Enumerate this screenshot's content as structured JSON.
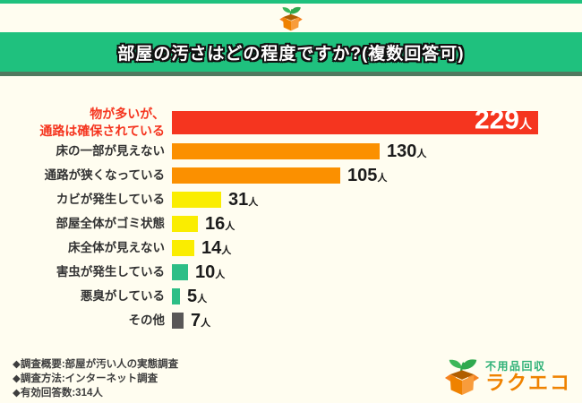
{
  "header": {
    "title": "部屋の汚さはどの程度ですか?(複数回答可)"
  },
  "chart_data": {
    "type": "bar",
    "orientation": "horizontal",
    "title": "部屋の汚さはどの程度ですか?(複数回答可)",
    "unit": "人",
    "categories": [
      "物が多いが、\n通路は確保されている",
      "床の一部が見えない",
      "通路が狭くなっている",
      "カビが発生している",
      "部屋全体がゴミ状態",
      "床全体が見えない",
      "害虫が発生している",
      "悪臭がしている",
      "その他"
    ],
    "values": [
      229,
      130,
      105,
      31,
      16,
      14,
      10,
      5,
      7
    ],
    "bar_colors": [
      "#F5351F",
      "#FB9000",
      "#FB9000",
      "#FAED00",
      "#FAED00",
      "#FAED00",
      "#2DBE86",
      "#2DBE86",
      "#595757"
    ],
    "highlight_index": 0,
    "value_label_position": [
      "inside",
      "outside",
      "outside",
      "outside",
      "outside",
      "outside",
      "outside",
      "outside",
      "outside"
    ],
    "xlim": [
      0,
      240
    ],
    "grid": false,
    "legend": false
  },
  "footer": {
    "notes": [
      "◆調査概要:部屋が汚い人の実態調査",
      "◆調査方法:インターネット調査",
      "◆有効回答数:314人"
    ]
  },
  "logo": {
    "service": "不用品回収",
    "brand": "ラクエコ"
  },
  "colors": {
    "banner": "#1FC17E",
    "banner_shadow": "#51795F",
    "background": "#FFFDF0",
    "highlight_red": "#F5351F",
    "orange": "#FB9000",
    "yellow": "#FAED00",
    "green": "#2DBE86",
    "gray": "#595757",
    "logo_green": "#2FB177",
    "logo_orange": "#EF8200"
  }
}
